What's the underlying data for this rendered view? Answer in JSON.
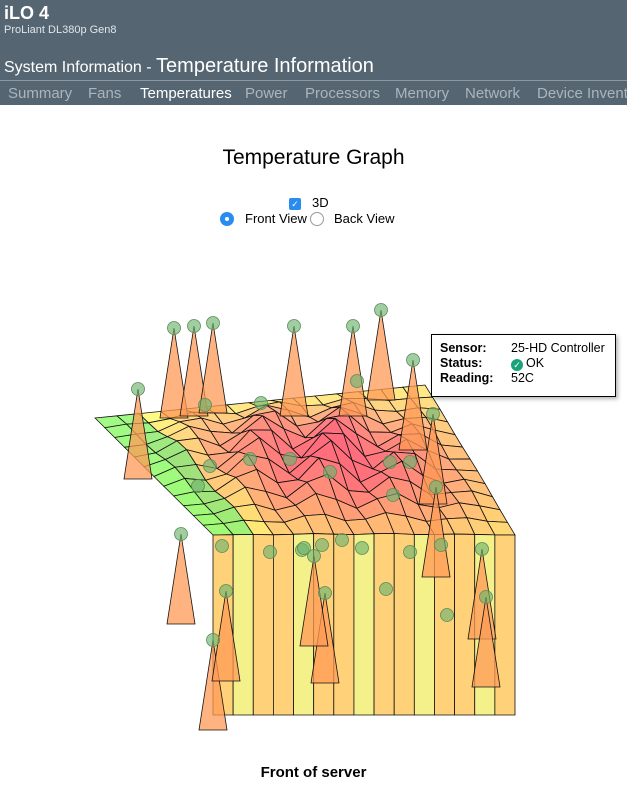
{
  "header": {
    "app": "iLO 4",
    "model": "ProLiant DL380p Gen8",
    "section": "System Information - ",
    "page": "Temperature Information"
  },
  "tabs": [
    {
      "label": "Summary",
      "active": false
    },
    {
      "label": "Fans",
      "active": false
    },
    {
      "label": "Temperatures",
      "active": true
    },
    {
      "label": "Power",
      "active": false
    },
    {
      "label": "Processors",
      "active": false
    },
    {
      "label": "Memory",
      "active": false
    },
    {
      "label": "Network",
      "active": false
    },
    {
      "label": "Device Inventory",
      "active": false
    }
  ],
  "graph": {
    "title": "Temperature Graph",
    "toggle_3d": {
      "label": "3D",
      "checked": true
    },
    "views": [
      {
        "label": "Front View",
        "selected": true
      },
      {
        "label": "Back View",
        "selected": false
      }
    ],
    "caption": "Front of server"
  },
  "tooltip": {
    "sensor_label": "Sensor:",
    "sensor": "25-HD Controller",
    "status_label": "Status:",
    "status": "OK",
    "reading_label": "Reading:",
    "reading": "52C"
  }
}
